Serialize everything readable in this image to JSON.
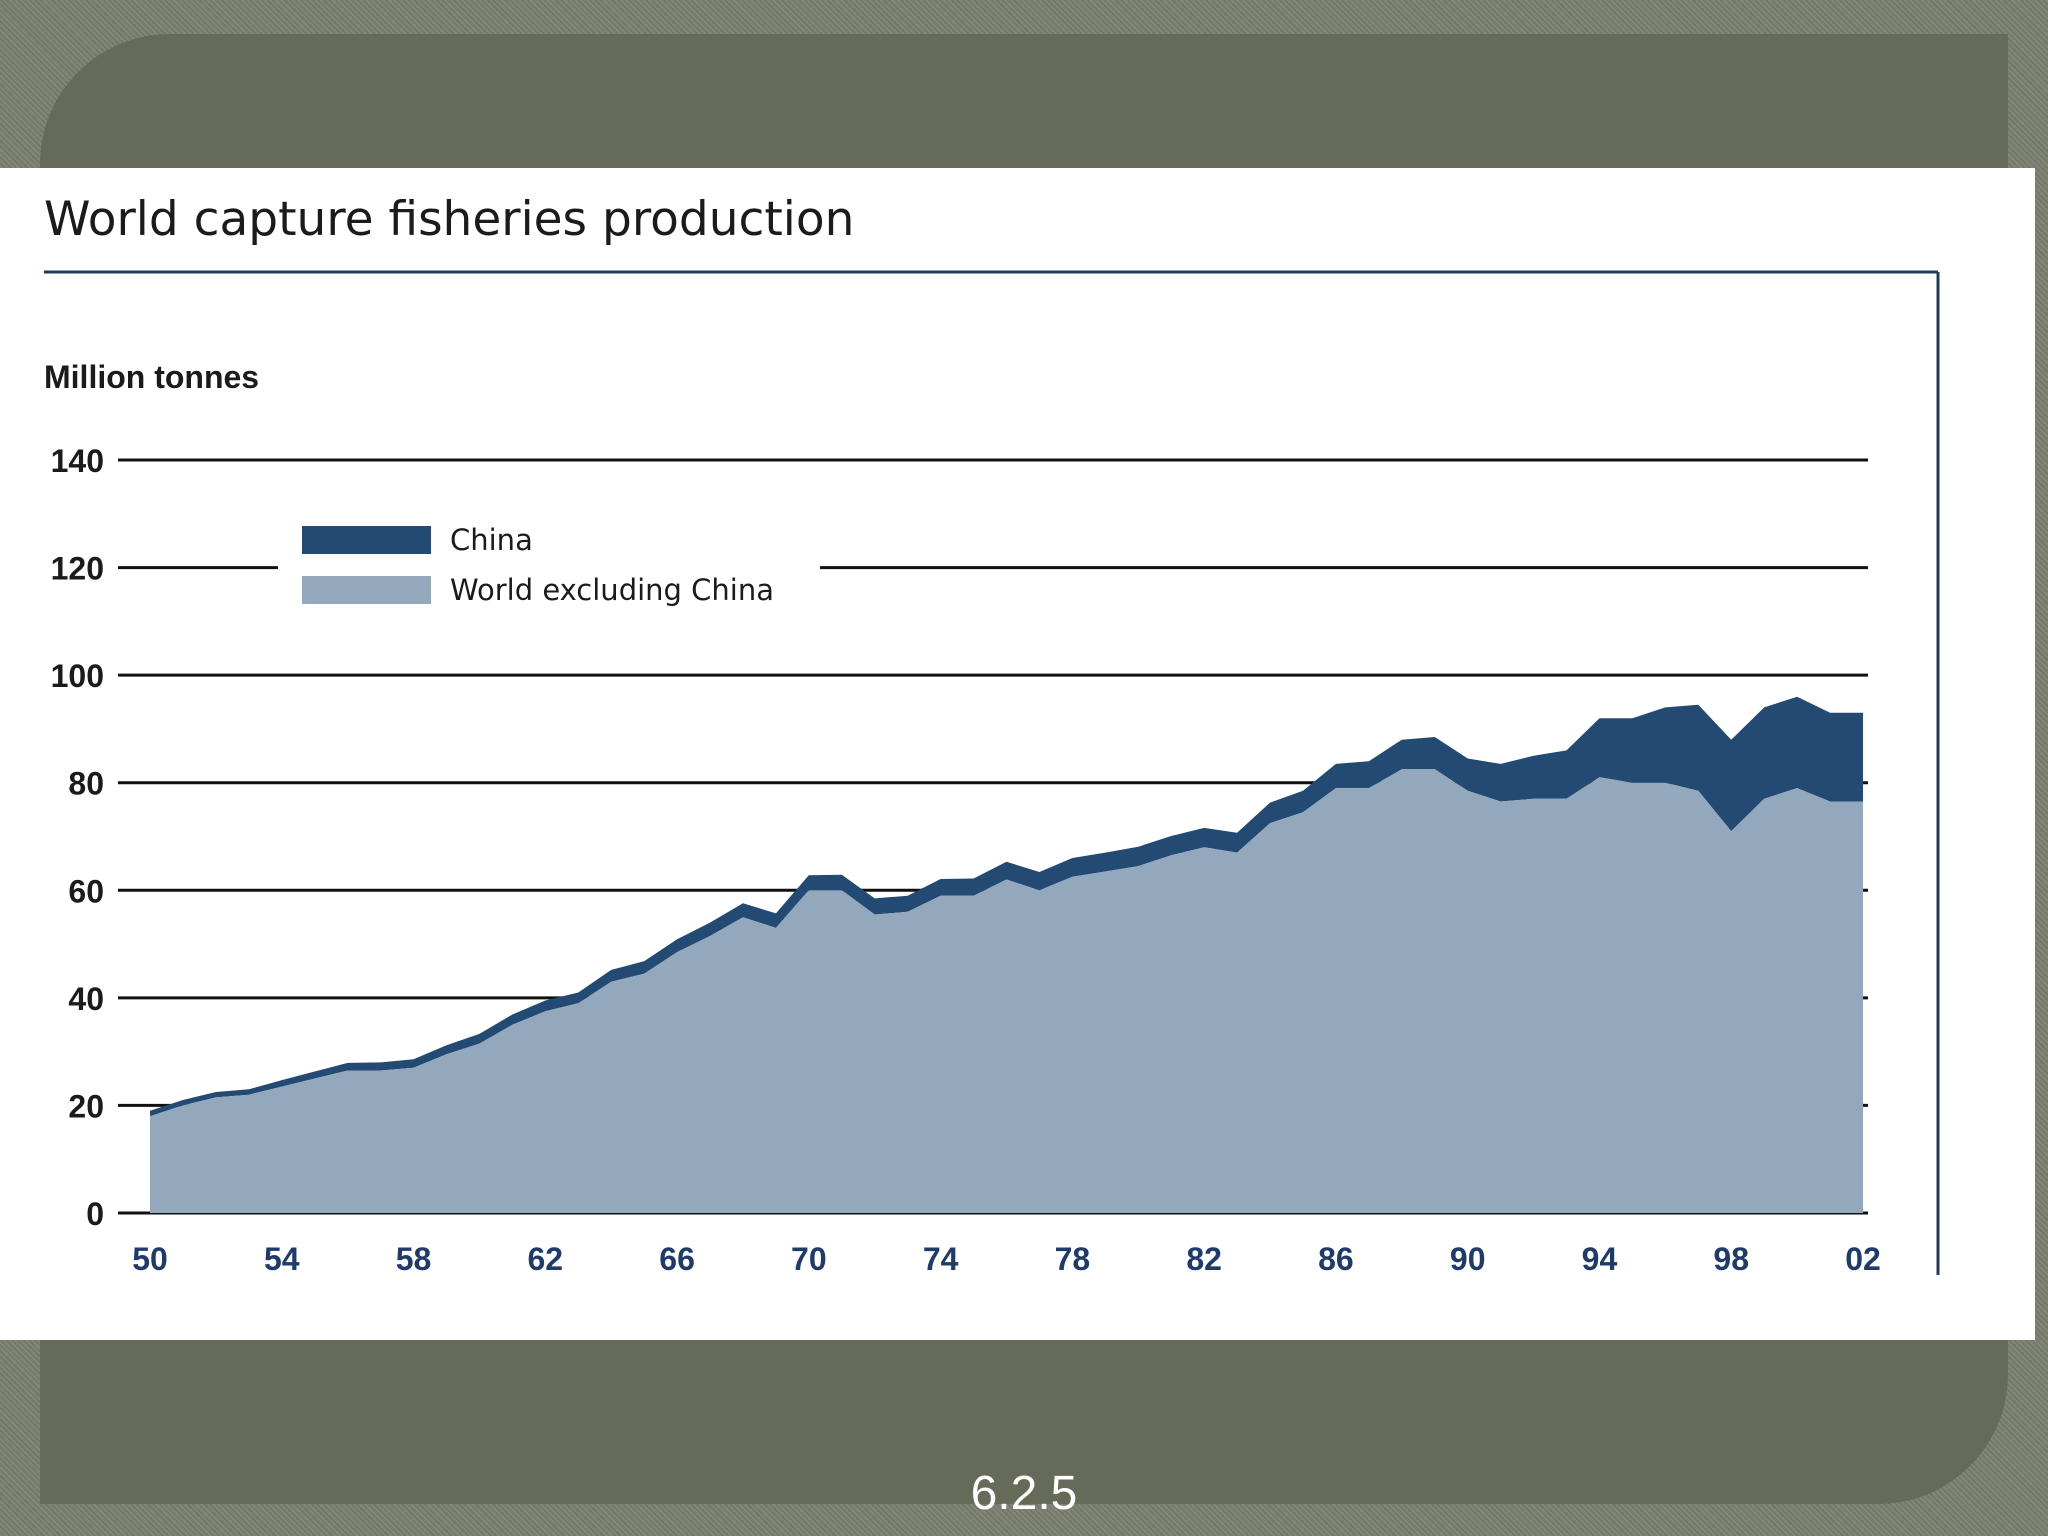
{
  "slide": {
    "footer_label": "6.2.5",
    "colors": {
      "background": "#7b7f6e",
      "panel": "#666a59",
      "china": "#234a73",
      "world_ex_china": "#93a7bd",
      "frame": "#1f3b5c",
      "axis_ticks_x": "#1f3b6b"
    }
  },
  "chart_data": {
    "type": "area",
    "stacked": true,
    "title": "World capture fisheries production",
    "ylabel": "Million tonnes",
    "xlabel": "",
    "ylim": [
      0,
      140
    ],
    "yticks": [
      0,
      20,
      40,
      60,
      80,
      100,
      120,
      140
    ],
    "xlim": [
      1950,
      2002
    ],
    "xticks": [
      {
        "year": 1950,
        "label": "50"
      },
      {
        "year": 1954,
        "label": "54"
      },
      {
        "year": 1958,
        "label": "58"
      },
      {
        "year": 1962,
        "label": "62"
      },
      {
        "year": 1966,
        "label": "66"
      },
      {
        "year": 1970,
        "label": "70"
      },
      {
        "year": 1974,
        "label": "74"
      },
      {
        "year": 1978,
        "label": "78"
      },
      {
        "year": 1982,
        "label": "82"
      },
      {
        "year": 1986,
        "label": "86"
      },
      {
        "year": 1990,
        "label": "90"
      },
      {
        "year": 1994,
        "label": "94"
      },
      {
        "year": 1998,
        "label": "98"
      },
      {
        "year": 2002,
        "label": "02"
      }
    ],
    "grid": true,
    "legend_position": "top-left",
    "x": [
      1950,
      1951,
      1952,
      1953,
      1954,
      1955,
      1956,
      1957,
      1958,
      1959,
      1960,
      1961,
      1962,
      1963,
      1964,
      1965,
      1966,
      1967,
      1968,
      1969,
      1970,
      1971,
      1972,
      1973,
      1974,
      1975,
      1976,
      1977,
      1978,
      1979,
      1980,
      1981,
      1982,
      1983,
      1984,
      1985,
      1986,
      1987,
      1988,
      1989,
      1990,
      1991,
      1992,
      1993,
      1994,
      1995,
      1996,
      1997,
      1998,
      1999,
      2000,
      2001,
      2002
    ],
    "series": [
      {
        "name": "World excluding China",
        "color": "#93a7bd",
        "values": [
          18,
          20,
          21.5,
          22,
          23.5,
          25,
          26.5,
          26.5,
          27,
          29.5,
          31.5,
          35,
          37.5,
          39,
          43,
          44.5,
          48.5,
          51.5,
          55,
          53,
          60,
          60,
          55.5,
          56,
          59,
          59,
          62,
          60,
          62.5,
          63.5,
          64.5,
          66.5,
          68,
          67,
          72.5,
          74.5,
          79,
          79,
          82.5,
          82.5,
          78.5,
          76.5,
          77,
          77,
          81,
          80,
          80,
          78.5,
          71,
          77,
          79,
          76.5,
          76.5
        ]
      },
      {
        "name": "China",
        "color": "#234a73",
        "values": [
          1,
          1,
          1,
          1,
          1.2,
          1.3,
          1.4,
          1.5,
          1.6,
          1.7,
          1.8,
          1.9,
          2,
          2,
          2.2,
          2.3,
          2.4,
          2.5,
          2.6,
          2.7,
          2.8,
          2.9,
          3,
          3,
          3.1,
          3.2,
          3.3,
          3.4,
          3.5,
          3.5,
          3.6,
          3.6,
          3.6,
          3.7,
          3.8,
          4,
          4.5,
          5,
          5.5,
          6,
          6,
          7,
          8,
          9,
          11,
          12,
          14,
          16,
          17,
          17,
          17,
          16.5,
          16.5
        ]
      }
    ]
  }
}
